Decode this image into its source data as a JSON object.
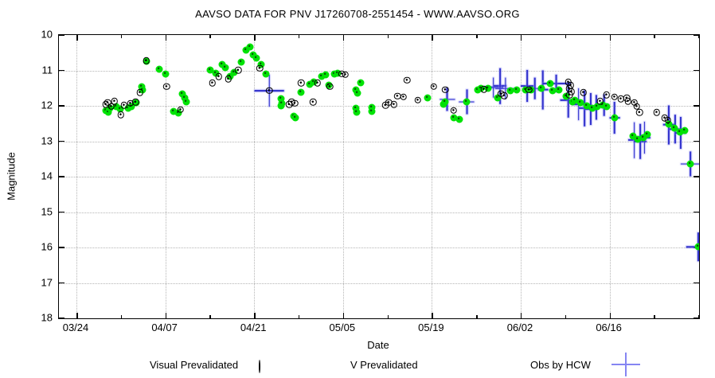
{
  "title": "AAVSO DATA FOR PNV J17260708-2551454 - WWW.AAVSO.ORG",
  "colors": {
    "background": "#ffffff",
    "visual_marker": "#000000",
    "v_marker": "#00e205",
    "hcw_cross": "#3232cd",
    "hcw_legend_cross": "#8585f2",
    "grid": "#b5b5b5",
    "axis": "#000000"
  },
  "chart_data": {
    "type": "scatter",
    "title": "AAVSO DATA FOR PNV J17260708-2551454 - WWW.AAVSO.ORG",
    "xlabel": "Date",
    "ylabel": "Magnitude",
    "grid": true,
    "legend_position": "bottom",
    "y_axis": {
      "ticks": [
        10,
        11,
        12,
        13,
        14,
        15,
        16,
        17,
        18
      ],
      "range": [
        10,
        18
      ],
      "inverted": true
    },
    "x_axis": {
      "unit": "days-since-03/24",
      "domain_days": [
        -2.8,
        98.2
      ],
      "ticks": [
        {
          "day": 0,
          "label": "03/24"
        },
        {
          "day": 14,
          "label": "04/07"
        },
        {
          "day": 28,
          "label": "04/21"
        },
        {
          "day": 42,
          "label": "05/05"
        },
        {
          "day": 56,
          "label": "05/19"
        },
        {
          "day": 70,
          "label": "06/02"
        },
        {
          "day": 84,
          "label": "06/16"
        }
      ],
      "minor_tick_days": [
        7,
        21,
        35,
        49,
        63,
        77,
        91,
        98
      ]
    },
    "series": [
      {
        "name": "Visual Prevalidated",
        "marker": "black-open-circle-dot",
        "color": "#000000",
        "points": [
          [
            4.6,
            11.96
          ],
          [
            4.9,
            11.91
          ],
          [
            5.5,
            12.02
          ],
          [
            6.0,
            11.87
          ],
          [
            7.0,
            12.25
          ],
          [
            7.5,
            11.98
          ],
          [
            8.5,
            11.93
          ],
          [
            9.3,
            11.89
          ],
          [
            10.0,
            11.62
          ],
          [
            11.0,
            10.72
          ],
          [
            14.2,
            11.46
          ],
          [
            16.4,
            12.11
          ],
          [
            21.4,
            11.35
          ],
          [
            22.4,
            11.17
          ],
          [
            23.9,
            11.24
          ],
          [
            25.5,
            10.99
          ],
          [
            28.9,
            10.94
          ],
          [
            30.4,
            11.57
          ],
          [
            33.5,
            11.96
          ],
          [
            33.9,
            11.89
          ],
          [
            34.4,
            11.93
          ],
          [
            35.4,
            11.35
          ],
          [
            37.3,
            11.89
          ],
          [
            38.0,
            11.35
          ],
          [
            39.9,
            11.46
          ],
          [
            41.8,
            11.1
          ],
          [
            42.4,
            11.12
          ],
          [
            48.7,
            11.98
          ],
          [
            49.2,
            11.91
          ],
          [
            50.0,
            11.96
          ],
          [
            50.6,
            11.73
          ],
          [
            51.5,
            11.75
          ],
          [
            52.1,
            11.28
          ],
          [
            53.8,
            11.84
          ],
          [
            56.3,
            11.46
          ],
          [
            58.1,
            11.55
          ],
          [
            59.4,
            12.13
          ],
          [
            64.2,
            11.53
          ],
          [
            66.9,
            11.66
          ],
          [
            67.4,
            11.71
          ],
          [
            71.3,
            11.55
          ],
          [
            77.5,
            11.33
          ],
          [
            77.6,
            11.51
          ],
          [
            77.7,
            11.69
          ],
          [
            77.9,
            11.42
          ],
          [
            78.0,
            11.6
          ],
          [
            79.9,
            11.62
          ],
          [
            82.5,
            11.87
          ],
          [
            83.5,
            11.69
          ],
          [
            84.8,
            11.75
          ],
          [
            85.8,
            11.8
          ],
          [
            86.7,
            11.78
          ],
          [
            86.9,
            11.87
          ],
          [
            87.9,
            11.91
          ],
          [
            88.3,
            12.02
          ],
          [
            88.7,
            12.18
          ],
          [
            91.4,
            12.18
          ],
          [
            92.7,
            12.34
          ],
          [
            93.2,
            12.4
          ]
        ]
      },
      {
        "name": "V Prevalidated",
        "marker": "green-filled-circle",
        "color": "#00e205",
        "points": [
          [
            4.6,
            12.13
          ],
          [
            5.0,
            12.18
          ],
          [
            5.3,
            12.07
          ],
          [
            6.3,
            12.02
          ],
          [
            6.9,
            12.09
          ],
          [
            8.2,
            12.07
          ],
          [
            8.7,
            12.02
          ],
          [
            9.4,
            11.91
          ],
          [
            10.3,
            11.46
          ],
          [
            10.4,
            11.55
          ],
          [
            11.0,
            10.74
          ],
          [
            13.1,
            10.97
          ],
          [
            14.1,
            11.1
          ],
          [
            15.3,
            12.16
          ],
          [
            16.0,
            12.2
          ],
          [
            16.7,
            11.66
          ],
          [
            17.1,
            11.78
          ],
          [
            17.3,
            11.89
          ],
          [
            21.1,
            10.99
          ],
          [
            22.0,
            11.08
          ],
          [
            23.0,
            10.83
          ],
          [
            23.4,
            10.92
          ],
          [
            24.2,
            11.17
          ],
          [
            24.9,
            11.06
          ],
          [
            26.0,
            10.76
          ],
          [
            26.7,
            10.43
          ],
          [
            27.3,
            10.34
          ],
          [
            27.9,
            10.56
          ],
          [
            28.4,
            10.65
          ],
          [
            29.1,
            10.83
          ],
          [
            29.9,
            11.1
          ],
          [
            32.2,
            12.0
          ],
          [
            32.3,
            11.8
          ],
          [
            32.4,
            11.93
          ],
          [
            34.2,
            12.29
          ],
          [
            34.5,
            12.34
          ],
          [
            35.4,
            11.62
          ],
          [
            36.8,
            11.39
          ],
          [
            37.4,
            11.33
          ],
          [
            38.7,
            11.17
          ],
          [
            39.3,
            11.12
          ],
          [
            39.8,
            11.42
          ],
          [
            40.6,
            11.1
          ],
          [
            41.2,
            11.08
          ],
          [
            44.0,
            11.55
          ],
          [
            44.0,
            12.07
          ],
          [
            44.1,
            12.18
          ],
          [
            44.3,
            11.64
          ],
          [
            44.8,
            11.35
          ],
          [
            46.5,
            12.04
          ],
          [
            46.6,
            12.16
          ],
          [
            55.3,
            11.78
          ],
          [
            57.8,
            11.96
          ],
          [
            58.1,
            11.89
          ],
          [
            59.4,
            12.34
          ],
          [
            60.3,
            12.38
          ],
          [
            61.5,
            11.89
          ],
          [
            63.2,
            11.55
          ],
          [
            63.7,
            11.51
          ],
          [
            64.8,
            11.51
          ],
          [
            66.3,
            11.78
          ],
          [
            68.4,
            11.57
          ],
          [
            69.4,
            11.55
          ],
          [
            70.7,
            11.55
          ],
          [
            71.6,
            11.55
          ],
          [
            73.2,
            11.51
          ],
          [
            74.7,
            11.37
          ],
          [
            75.0,
            11.57
          ],
          [
            76.0,
            11.55
          ],
          [
            77.2,
            11.73
          ],
          [
            78.2,
            11.89
          ],
          [
            78.5,
            11.84
          ],
          [
            79.4,
            11.91
          ],
          [
            80.4,
            12.0
          ],
          [
            81.3,
            12.07
          ],
          [
            82.0,
            12.02
          ],
          [
            82.9,
            11.98
          ],
          [
            83.5,
            12.02
          ],
          [
            84.8,
            12.34
          ],
          [
            87.7,
            12.85
          ],
          [
            88.5,
            12.94
          ],
          [
            89.3,
            12.9
          ],
          [
            90.0,
            12.81
          ],
          [
            93.3,
            12.52
          ],
          [
            94.2,
            12.63
          ],
          [
            95.1,
            12.74
          ],
          [
            95.8,
            12.7
          ],
          [
            96.7,
            13.64
          ],
          [
            98.0,
            15.98
          ]
        ]
      },
      {
        "name": "Obs by HCW",
        "marker": "blue-cross-error-bars",
        "color": "#3232cd",
        "points_format": "[day, magnitude, day_error, magnitude_error]",
        "points": [
          [
            30.4,
            11.57,
            2.3,
            0.45
          ],
          [
            58.4,
            11.82,
            1.2,
            0.33
          ],
          [
            61.5,
            11.89,
            1.2,
            0.35
          ],
          [
            65.7,
            11.48,
            1.5,
            0.28
          ],
          [
            66.8,
            11.44,
            1.0,
            0.5
          ],
          [
            67.6,
            11.51,
            1.6,
            0.3
          ],
          [
            71.0,
            11.44,
            1.0,
            0.45
          ],
          [
            72.2,
            11.51,
            0.8,
            0.3
          ],
          [
            73.5,
            11.55,
            0.8,
            0.55
          ],
          [
            75.6,
            11.37,
            2.2,
            0.25
          ],
          [
            77.5,
            11.84,
            1.3,
            0.5
          ],
          [
            79.1,
            11.96,
            1.0,
            0.45
          ],
          [
            80.1,
            12.07,
            1.0,
            0.5
          ],
          [
            81.0,
            12.09,
            0.9,
            0.45
          ],
          [
            81.9,
            12.04,
            0.9,
            0.35
          ],
          [
            83.1,
            11.98,
            0.8,
            0.3
          ],
          [
            84.8,
            12.34,
            0.8,
            0.45
          ],
          [
            87.9,
            12.97,
            1.0,
            0.5
          ],
          [
            88.8,
            13.01,
            1.0,
            0.5
          ],
          [
            89.5,
            12.9,
            0.9,
            0.45
          ],
          [
            93.3,
            12.54,
            0.9,
            0.55
          ],
          [
            94.3,
            12.65,
            0.9,
            0.4
          ],
          [
            95.2,
            12.76,
            0.9,
            0.45
          ],
          [
            96.7,
            13.64,
            1.5,
            0.35
          ],
          [
            98.0,
            15.98,
            1.9,
            0.4
          ]
        ]
      }
    ]
  },
  "legend": {
    "items": [
      {
        "label": "Visual Prevalidated",
        "marker": "black-open-circle-dot"
      },
      {
        "label": "V Prevalidated",
        "marker": "green-filled-circle"
      },
      {
        "label": "Obs by HCW",
        "marker": "blue-cross"
      }
    ]
  }
}
